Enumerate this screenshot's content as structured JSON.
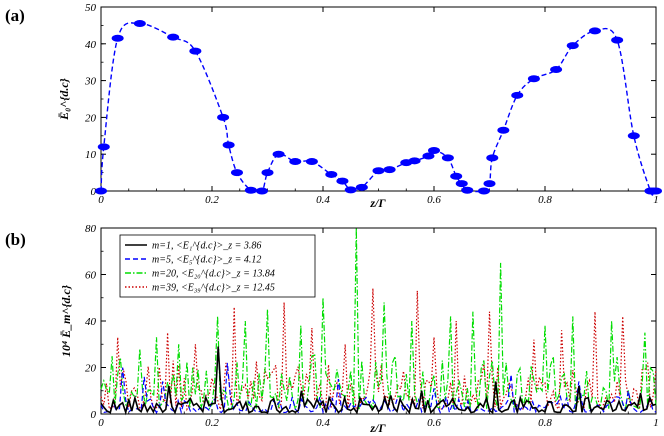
{
  "chart_data": [
    {
      "type": "line",
      "panel_label": "(a)",
      "xlabel": "z/Γ",
      "ylabel": "Ē₀^{d.c}",
      "xlim": [
        0,
        1
      ],
      "ylim": [
        0,
        50
      ],
      "xticks": [
        "0",
        "0.2",
        "0.4",
        "0.6",
        "0.8",
        "1"
      ],
      "yticks": [
        "0",
        "10",
        "20",
        "30",
        "40",
        "50"
      ],
      "grid": false,
      "series": [
        {
          "color": "#0000ff",
          "style": "dashed",
          "markers": "filled-ellipse",
          "x": [
            0,
            0.005,
            0.03,
            0.07,
            0.13,
            0.17,
            0.22,
            0.23,
            0.245,
            0.27,
            0.29,
            0.3,
            0.32,
            0.35,
            0.38,
            0.415,
            0.435,
            0.45,
            0.47,
            0.5,
            0.52,
            0.55,
            0.565,
            0.59,
            0.6,
            0.625,
            0.64,
            0.65,
            0.66,
            0.69,
            0.7,
            0.705,
            0.725,
            0.75,
            0.78,
            0.82,
            0.85,
            0.89,
            0.93,
            0.96,
            0.99,
            0.995,
            1.0
          ],
          "y": [
            0,
            12,
            41.5,
            45.5,
            41.8,
            38,
            20,
            12.5,
            5,
            0.2,
            0,
            5,
            10,
            8,
            8,
            4.5,
            2.7,
            0.3,
            1,
            5.5,
            5.8,
            7.7,
            8.2,
            9.5,
            11,
            9,
            4,
            2,
            0.2,
            0,
            2,
            9,
            16.5,
            26,
            30.5,
            33,
            39.5,
            43.5,
            41,
            15,
            0,
            0,
            0
          ]
        }
      ]
    },
    {
      "type": "line",
      "panel_label": "(b)",
      "xlabel": "z/Γ",
      "ylabel": "10⁴ Ē_m^{d.c}",
      "xlim": [
        0,
        1
      ],
      "ylim": [
        0,
        80
      ],
      "xticks": [
        "0",
        "0.2",
        "0.4",
        "0.6",
        "0.8",
        "1"
      ],
      "yticks": [
        "0",
        "20",
        "40",
        "60",
        "80"
      ],
      "grid": false,
      "legend_position": "top-left",
      "series": [
        {
          "name": "m=1,  <E₁^{d.c}>_z = 3.86",
          "color": "#000000",
          "style": "solid",
          "points": 180,
          "mean": 3.86,
          "peaks": [
            [
              0.21,
              29
            ],
            [
              0.12,
              12
            ],
            [
              0.71,
              14
            ],
            [
              0.36,
              10
            ],
            [
              0.58,
              10
            ],
            [
              0.86,
              12
            ],
            [
              0.97,
              9
            ],
            [
              0.52,
              8
            ]
          ]
        },
        {
          "name": "m=5,  <E₅^{d.c}>_z = 4.12",
          "color": "#0000ff",
          "style": "dashed",
          "points": 180,
          "mean": 4.12,
          "peaks": [
            [
              0.04,
              20
            ],
            [
              0.08,
              16
            ],
            [
              0.11,
              14
            ],
            [
              0.23,
              22
            ],
            [
              0.43,
              15
            ],
            [
              0.6,
              11
            ],
            [
              0.74,
              17
            ],
            [
              0.86,
              14
            ],
            [
              0.95,
              10
            ]
          ]
        },
        {
          "name": "m=20,  <E₂₀^{d.c}>_z = 13.84",
          "color": "#00dd00",
          "style": "dashdot",
          "points": 200,
          "mean": 13.84,
          "peaks": [
            [
              0.46,
              80
            ],
            [
              0.72,
              65
            ],
            [
              0.63,
              42
            ],
            [
              0.3,
              45
            ],
            [
              0.26,
              40
            ],
            [
              0.21,
              42
            ],
            [
              0.36,
              38
            ],
            [
              0.4,
              50
            ],
            [
              0.51,
              48
            ],
            [
              0.56,
              40
            ],
            [
              0.8,
              38
            ],
            [
              0.85,
              42
            ],
            [
              0.92,
              40
            ],
            [
              0.07,
              28
            ],
            [
              0.1,
              33
            ],
            [
              0.14,
              30
            ],
            [
              0.67,
              44
            ],
            [
              0.98,
              35
            ]
          ]
        },
        {
          "name": "m=39,  <E₃₉^{d.c}>_z = 12.45",
          "color": "#cc0000",
          "style": "dotted",
          "points": 200,
          "mean": 12.45,
          "peaks": [
            [
              0.49,
              54
            ],
            [
              0.57,
              53
            ],
            [
              0.33,
              48
            ],
            [
              0.24,
              46
            ],
            [
              0.64,
              40
            ],
            [
              0.7,
              44
            ],
            [
              0.78,
              32
            ],
            [
              0.89,
              44
            ],
            [
              0.94,
              42
            ],
            [
              0.17,
              30
            ],
            [
              0.12,
              35
            ],
            [
              0.03,
              33
            ],
            [
              0.38,
              37
            ],
            [
              0.44,
              30
            ],
            [
              0.6,
              33
            ],
            [
              0.83,
              36
            ]
          ]
        }
      ]
    }
  ]
}
